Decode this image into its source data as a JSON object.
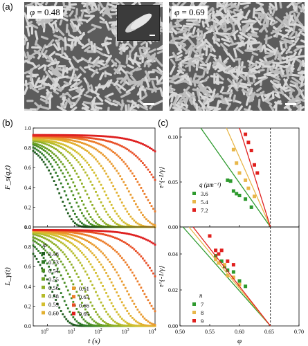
{
  "panel_a": {
    "letter": "(a)",
    "left_label": {
      "symbol": "φ",
      "value": "= 0.48"
    },
    "right_label": {
      "symbol": "φ",
      "value": "= 0.69"
    }
  },
  "panel_b": {
    "letter": "(b)",
    "top_ylabel": "F_s(q,t)",
    "bottom_ylabel": "L_γ(t)",
    "xlabel": "t (s)",
    "legend_title": "φ",
    "y_ticks": [
      "0.0",
      "0.2",
      "0.4",
      "0.6",
      "0.8",
      "1.0"
    ],
    "x_ticks": [
      "10^0",
      "10^1",
      "10^2",
      "10^3",
      "10^4"
    ]
  },
  "panel_c": {
    "letter": "(c)",
    "top_ylabel": "τ^{-1/γ}",
    "bottom_ylabel": "τ^{-1/γ}",
    "xlabel": "φ",
    "top_legend_title": "q (μm⁻¹)",
    "bottom_legend_title": "n",
    "top_y_ticks": [
      "0.00",
      "0.05",
      "0.10"
    ],
    "bottom_y_ticks": [
      "0.00",
      "0.02",
      "0.04"
    ],
    "x_ticks": [
      "0.50",
      "0.55",
      "0.60",
      "0.65",
      "0.70"
    ]
  },
  "colors": {
    "green": "#2e9a2e",
    "orange": "#e8b74a",
    "red": "#e0201e"
  },
  "chart_data": [
    {
      "type": "line",
      "panel": "b-top",
      "xlabel": "t (s)",
      "ylabel": "F_s(q,t)",
      "xscale": "log",
      "xlim": [
        0.3,
        10000
      ],
      "ylim": [
        0,
        1.0
      ],
      "series": [
        {
          "name": "0.48",
          "color": "#1e5c1e",
          "tau": 3.0,
          "beta": 0.9,
          "p": 0.87
        },
        {
          "name": "0.53",
          "color": "#2f7a26",
          "tau": 5.0,
          "beta": 0.85,
          "p": 0.88
        },
        {
          "name": "0.54",
          "color": "#4a8e22",
          "tau": 9.0,
          "beta": 0.8,
          "p": 0.89
        },
        {
          "name": "0.55",
          "color": "#6aa022",
          "tau": 15.0,
          "beta": 0.78,
          "p": 0.89
        },
        {
          "name": "0.56",
          "color": "#8fae25",
          "tau": 30.0,
          "beta": 0.75,
          "p": 0.9
        },
        {
          "name": "0.58",
          "color": "#b5bb2a",
          "tau": 70.0,
          "beta": 0.72,
          "p": 0.9
        },
        {
          "name": "0.59",
          "color": "#d3be2e",
          "tau": 150.0,
          "beta": 0.7,
          "p": 0.9
        },
        {
          "name": "0.60",
          "color": "#e2b030",
          "tau": 400.0,
          "beta": 0.68,
          "p": 0.91
        },
        {
          "name": "0.61",
          "color": "#e99a2e",
          "tau": 1200.0,
          "beta": 0.65,
          "p": 0.91
        },
        {
          "name": "0.63",
          "color": "#ec7c2a",
          "tau": 4000.0,
          "beta": 0.62,
          "p": 0.92
        },
        {
          "name": "0.66",
          "color": "#e84e26",
          "tau": 20000.0,
          "beta": 0.6,
          "p": 0.92
        },
        {
          "name": "0.69",
          "color": "#de1f1f",
          "tau": 150000.0,
          "beta": 0.6,
          "p": 0.93
        }
      ]
    },
    {
      "type": "line",
      "panel": "b-bottom",
      "xlabel": "t (s)",
      "ylabel": "L_γ(t)",
      "xscale": "log",
      "xlim": [
        0.3,
        10000
      ],
      "ylim": [
        0,
        1.0
      ],
      "series": [
        {
          "name": "0.48",
          "color": "#1e5c1e",
          "tau": 1.5,
          "beta": 0.8,
          "p": 0.96
        },
        {
          "name": "0.53",
          "color": "#2f7a26",
          "tau": 3.0,
          "beta": 0.78,
          "p": 0.96
        },
        {
          "name": "0.54",
          "color": "#4a8e22",
          "tau": 6.0,
          "beta": 0.75,
          "p": 0.96
        },
        {
          "name": "0.55",
          "color": "#6aa022",
          "tau": 12.0,
          "beta": 0.72,
          "p": 0.96
        },
        {
          "name": "0.56",
          "color": "#8fae25",
          "tau": 25.0,
          "beta": 0.7,
          "p": 0.97
        },
        {
          "name": "0.58",
          "color": "#b5bb2a",
          "tau": 60.0,
          "beta": 0.68,
          "p": 0.97
        },
        {
          "name": "0.59",
          "color": "#d3be2e",
          "tau": 140.0,
          "beta": 0.66,
          "p": 0.97
        },
        {
          "name": "0.60",
          "color": "#e2b030",
          "tau": 350.0,
          "beta": 0.64,
          "p": 0.97
        },
        {
          "name": "0.61",
          "color": "#e99a2e",
          "tau": 900.0,
          "beta": 0.62,
          "p": 0.97
        },
        {
          "name": "0.63",
          "color": "#ec7c2a",
          "tau": 3500.0,
          "beta": 0.6,
          "p": 0.97
        },
        {
          "name": "0.66",
          "color": "#e84e26",
          "tau": 20000.0,
          "beta": 0.6,
          "p": 0.97
        },
        {
          "name": "0.69",
          "color": "#de1f1f",
          "tau": 200000.0,
          "beta": 0.6,
          "p": 0.97
        }
      ]
    },
    {
      "type": "scatter",
      "panel": "c-top",
      "xlabel": "φ",
      "ylabel": "τ^{-1/γ}",
      "xlim": [
        0.5,
        0.7
      ],
      "ylim": [
        0,
        0.11
      ],
      "phi_c": 0.652,
      "series": [
        {
          "name": "3.6",
          "color": "#2e9a2e",
          "points": [
            [
              0.58,
              0.052
            ],
            [
              0.585,
              0.051
            ],
            [
              0.59,
              0.04
            ],
            [
              0.595,
              0.037
            ],
            [
              0.6,
              0.035
            ],
            [
              0.61,
              0.031
            ],
            [
              0.62,
              0.022
            ]
          ],
          "fit": [
            [
              0.535,
              0.11
            ],
            [
              0.652,
              0.0
            ]
          ]
        },
        {
          "name": "5.4",
          "color": "#e8b74a",
          "points": [
            [
              0.59,
              0.086
            ],
            [
              0.595,
              0.071
            ],
            [
              0.6,
              0.06
            ],
            [
              0.61,
              0.052
            ],
            [
              0.615,
              0.043
            ],
            [
              0.625,
              0.034
            ]
          ],
          "fit": [
            [
              0.578,
              0.11
            ],
            [
              0.652,
              0.0
            ]
          ]
        },
        {
          "name": "7.2",
          "color": "#e0201e",
          "points": [
            [
              0.61,
              0.103
            ],
            [
              0.615,
              0.094
            ],
            [
              0.62,
              0.085
            ],
            [
              0.625,
              0.069
            ],
            [
              0.63,
              0.06
            ]
          ],
          "fit": [
            [
              0.6,
              0.11
            ],
            [
              0.652,
              0.0
            ]
          ]
        }
      ]
    },
    {
      "type": "scatter",
      "panel": "c-bottom",
      "xlabel": "φ",
      "ylabel": "τ^{-1/γ}",
      "xlim": [
        0.5,
        0.7
      ],
      "ylim": [
        0,
        0.055
      ],
      "phi_c": 0.652,
      "series": [
        {
          "name": "7",
          "color": "#2e9a2e",
          "points": [
            [
              0.56,
              0.039
            ],
            [
              0.57,
              0.036
            ],
            [
              0.575,
              0.033
            ],
            [
              0.58,
              0.031
            ],
            [
              0.59,
              0.03
            ],
            [
              0.6,
              0.025
            ],
            [
              0.61,
              0.022
            ]
          ],
          "fit": [
            [
              0.505,
              0.055
            ],
            [
              0.652,
              0.0
            ]
          ]
        },
        {
          "name": "8",
          "color": "#e8b74a",
          "points": [
            [
              0.56,
              0.037
            ],
            [
              0.565,
              0.035
            ],
            [
              0.575,
              0.034
            ],
            [
              0.58,
              0.028
            ],
            [
              0.59,
              0.027
            ],
            [
              0.6,
              0.023
            ]
          ],
          "fit": [
            [
              0.515,
              0.055
            ],
            [
              0.652,
              0.0
            ]
          ]
        },
        {
          "name": "9",
          "color": "#e0201e",
          "points": [
            [
              0.55,
              0.05
            ],
            [
              0.56,
              0.042
            ],
            [
              0.565,
              0.04
            ],
            [
              0.57,
              0.042
            ],
            [
              0.58,
              0.036
            ],
            [
              0.59,
              0.034
            ]
          ],
          "fit": [
            [
              0.522,
              0.055
            ],
            [
              0.652,
              0.0
            ]
          ]
        }
      ]
    }
  ]
}
